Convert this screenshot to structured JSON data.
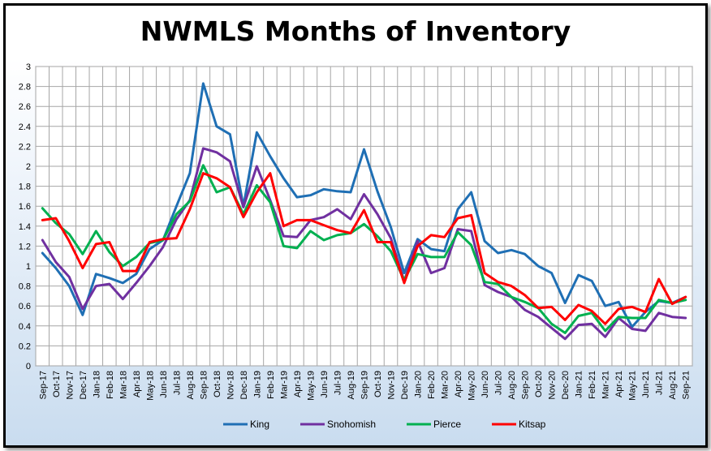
{
  "chart_data": {
    "type": "line",
    "title": "NWMLS Months of Inventory",
    "xlabel": "",
    "ylabel": "",
    "ylim": [
      0,
      3
    ],
    "yticks": [
      "0",
      "0.2",
      "0.4",
      "0.6",
      "0.8",
      "1",
      "1.2",
      "1.4",
      "1.6",
      "1.8",
      "2",
      "2.2",
      "2.4",
      "2.6",
      "2.8",
      "3"
    ],
    "grid": true,
    "legend_position": "bottom",
    "categories": [
      "Sep-17",
      "Oct-17",
      "Nov-17",
      "Dec-17",
      "Jan-18",
      "Feb-18",
      "Mar-18",
      "Apr-18",
      "May-18",
      "Jun-18",
      "Jul-18",
      "Aug-18",
      "Sep-18",
      "Oct-18",
      "Nov-18",
      "Dec-18",
      "Jan-19",
      "Feb-19",
      "Mar-19",
      "Apr-19",
      "May-19",
      "Jun-19",
      "Jul-19",
      "Aug-19",
      "Sep-19",
      "Oct-19",
      "Nov-19",
      "Dec-19",
      "Jan-20",
      "Feb-20",
      "Mar-20",
      "Apr-20",
      "May-20",
      "Jun-20",
      "Jul-20",
      "Aug-20",
      "Sep-20",
      "Oct-20",
      "Nov-20",
      "Dec-20",
      "Jan-21",
      "Feb-21",
      "Mar-21",
      "Apr-21",
      "May-21",
      "Jun-21",
      "Jul-21",
      "Aug-21",
      "Sep-21"
    ],
    "series": [
      {
        "name": "King",
        "color": "#1f6fb4",
        "values": [
          1.13,
          0.98,
          0.8,
          0.51,
          0.92,
          0.88,
          0.83,
          0.92,
          1.17,
          1.26,
          1.6,
          1.93,
          2.83,
          2.4,
          2.32,
          1.6,
          2.34,
          2.1,
          1.88,
          1.69,
          1.71,
          1.77,
          1.75,
          1.74,
          2.17,
          1.75,
          1.39,
          0.93,
          1.27,
          1.17,
          1.15,
          1.57,
          1.74,
          1.25,
          1.13,
          1.16,
          1.12,
          1.0,
          0.93,
          0.63,
          0.91,
          0.85,
          0.6,
          0.64,
          0.39,
          0.54,
          0.65,
          0.63,
          0.69
        ]
      },
      {
        "name": "Snohomish",
        "color": "#7030a0",
        "values": [
          1.26,
          1.04,
          0.89,
          0.57,
          0.8,
          0.82,
          0.67,
          0.83,
          1.0,
          1.19,
          1.47,
          1.66,
          2.18,
          2.14,
          2.05,
          1.59,
          2.0,
          1.66,
          1.3,
          1.29,
          1.46,
          1.49,
          1.57,
          1.47,
          1.72,
          1.52,
          1.28,
          0.85,
          1.25,
          0.93,
          0.98,
          1.37,
          1.35,
          0.81,
          0.74,
          0.69,
          0.56,
          0.49,
          0.38,
          0.27,
          0.41,
          0.42,
          0.29,
          0.48,
          0.37,
          0.35,
          0.53,
          0.49,
          0.48
        ]
      },
      {
        "name": "Pierce",
        "color": "#00b050",
        "values": [
          1.58,
          1.43,
          1.32,
          1.12,
          1.35,
          1.14,
          1.0,
          1.09,
          1.23,
          1.26,
          1.52,
          1.65,
          2.01,
          1.74,
          1.79,
          1.52,
          1.81,
          1.64,
          1.2,
          1.18,
          1.35,
          1.26,
          1.31,
          1.33,
          1.42,
          1.3,
          1.15,
          0.86,
          1.12,
          1.09,
          1.09,
          1.34,
          1.21,
          0.84,
          0.82,
          0.69,
          0.64,
          0.58,
          0.42,
          0.33,
          0.5,
          0.53,
          0.35,
          0.49,
          0.48,
          0.48,
          0.66,
          0.63,
          0.66
        ]
      },
      {
        "name": "Kitsap",
        "color": "#ff0000",
        "values": [
          1.46,
          1.48,
          1.25,
          0.98,
          1.22,
          1.24,
          0.95,
          0.95,
          1.24,
          1.27,
          1.28,
          1.57,
          1.93,
          1.88,
          1.79,
          1.49,
          1.74,
          1.93,
          1.4,
          1.46,
          1.46,
          1.41,
          1.36,
          1.33,
          1.56,
          1.24,
          1.24,
          0.83,
          1.2,
          1.31,
          1.29,
          1.48,
          1.51,
          0.93,
          0.84,
          0.8,
          0.71,
          0.58,
          0.59,
          0.46,
          0.61,
          0.55,
          0.42,
          0.57,
          0.59,
          0.54,
          0.87,
          0.62,
          0.69
        ]
      }
    ]
  }
}
